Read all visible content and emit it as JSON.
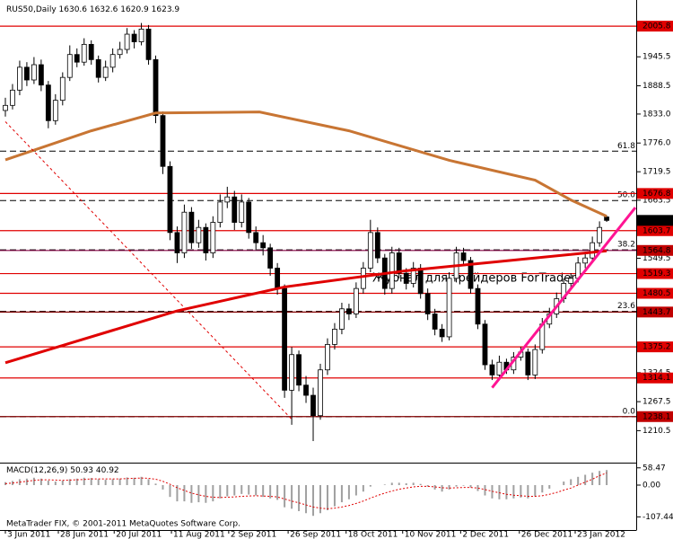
{
  "chart_data": {
    "type": "candlestick",
    "symbol": "RUS50,Daily",
    "watermark": "Журнал для трейдеров   ForTrader",
    "copyright": "MetaTrader FIX, © 2001-2011 MetaQuotes Software Corp.",
    "xlim": [
      -0.75,
      88.25
    ],
    "xticks": [
      {
        "value": 0,
        "label": "3 Jun 2011"
      },
      {
        "value": 7.4,
        "label": "28 Jun 2011"
      },
      {
        "value": 15.2,
        "label": "20 Jul 2011"
      },
      {
        "value": 23.2,
        "label": "11 Aug 2011"
      },
      {
        "value": 31.2,
        "label": "2 Sep 2011"
      },
      {
        "value": 39.5,
        "label": "26 Sep 2011"
      },
      {
        "value": 47.6,
        "label": "18 Oct 2011"
      },
      {
        "value": 55.5,
        "label": "10 Nov 2011"
      },
      {
        "value": 63.6,
        "label": "2 Dec 2011"
      },
      {
        "value": 71.8,
        "label": "26 Dec 2011"
      },
      {
        "value": 79.6,
        "label": "23 Jan 2012"
      }
    ],
    "ylim": [
      1147.6,
      2057.2
    ],
    "yticks": [
      1945.5,
      1888.5,
      {
        "value": 1833,
        "label": "1833.0"
      },
      {
        "value": 1776,
        "label": "1776.0"
      },
      1719.5,
      1663.5,
      1549.5,
      1324.5,
      1267.5,
      1210.5
    ],
    "up_color": "#ffffff",
    "down_color": "#000000",
    "candles": [
      [
        1840,
        1865,
        1828,
        1850
      ],
      [
        1850,
        1892,
        1842,
        1880
      ],
      [
        1880,
        1938,
        1870,
        1925
      ],
      [
        1925,
        1935,
        1888,
        1900
      ],
      [
        1900,
        1945,
        1892,
        1930
      ],
      [
        1930,
        1940,
        1878,
        1890
      ],
      [
        1890,
        1898,
        1805,
        1820
      ],
      [
        1820,
        1872,
        1812,
        1860
      ],
      [
        1860,
        1915,
        1850,
        1905
      ],
      [
        1905,
        1968,
        1898,
        1950
      ],
      [
        1950,
        1962,
        1925,
        1935
      ],
      [
        1935,
        1982,
        1928,
        1970
      ],
      [
        1970,
        1978,
        1930,
        1940
      ],
      [
        1940,
        1948,
        1895,
        1905
      ],
      [
        1905,
        1938,
        1898,
        1925
      ],
      [
        1925,
        1962,
        1915,
        1950
      ],
      [
        1950,
        1975,
        1942,
        1960
      ],
      [
        1960,
        2002,
        1952,
        1990
      ],
      [
        1990,
        1998,
        1962,
        1975
      ],
      [
        1975,
        2012,
        1968,
        2000
      ],
      [
        2000,
        2008,
        1930,
        1940
      ],
      [
        1940,
        1948,
        1815,
        1830
      ],
      [
        1830,
        1838,
        1715,
        1730
      ],
      [
        1730,
        1740,
        1585,
        1600
      ],
      [
        1600,
        1612,
        1540,
        1560
      ],
      [
        1560,
        1655,
        1550,
        1640
      ],
      [
        1640,
        1650,
        1568,
        1580
      ],
      [
        1580,
        1625,
        1570,
        1610
      ],
      [
        1610,
        1618,
        1545,
        1560
      ],
      [
        1560,
        1632,
        1550,
        1620
      ],
      [
        1620,
        1675,
        1610,
        1660
      ],
      [
        1660,
        1690,
        1648,
        1670
      ],
      [
        1670,
        1682,
        1605,
        1620
      ],
      [
        1620,
        1675,
        1610,
        1660
      ],
      [
        1660,
        1668,
        1588,
        1600
      ],
      [
        1600,
        1612,
        1565,
        1580
      ],
      [
        1580,
        1595,
        1555,
        1570
      ],
      [
        1570,
        1578,
        1515,
        1530
      ],
      [
        1530,
        1540,
        1478,
        1490
      ],
      [
        1490,
        1498,
        1275,
        1290
      ],
      [
        1290,
        1375,
        1222,
        1360
      ],
      [
        1360,
        1368,
        1288,
        1300
      ],
      [
        1300,
        1318,
        1265,
        1280
      ],
      [
        1280,
        1295,
        1190,
        1240
      ],
      [
        1240,
        1342,
        1232,
        1330
      ],
      [
        1330,
        1392,
        1320,
        1380
      ],
      [
        1380,
        1422,
        1370,
        1410
      ],
      [
        1410,
        1462,
        1400,
        1450
      ],
      [
        1450,
        1460,
        1428,
        1440
      ],
      [
        1440,
        1502,
        1432,
        1490
      ],
      [
        1490,
        1542,
        1480,
        1530
      ],
      [
        1530,
        1625,
        1522,
        1600
      ],
      [
        1600,
        1610,
        1540,
        1550
      ],
      [
        1550,
        1558,
        1478,
        1490
      ],
      [
        1490,
        1572,
        1480,
        1560
      ],
      [
        1560,
        1570,
        1510,
        1520
      ],
      [
        1520,
        1530,
        1488,
        1500
      ],
      [
        1500,
        1542,
        1492,
        1530
      ],
      [
        1530,
        1538,
        1470,
        1480
      ],
      [
        1480,
        1490,
        1428,
        1440
      ],
      [
        1440,
        1450,
        1398,
        1410
      ],
      [
        1410,
        1420,
        1385,
        1395
      ],
      [
        1395,
        1522,
        1388,
        1510
      ],
      [
        1510,
        1572,
        1502,
        1560
      ],
      [
        1560,
        1570,
        1535,
        1545
      ],
      [
        1545,
        1552,
        1480,
        1490
      ],
      [
        1490,
        1498,
        1410,
        1420
      ],
      [
        1420,
        1428,
        1330,
        1340
      ],
      [
        1340,
        1350,
        1310,
        1320
      ],
      [
        1320,
        1358,
        1312,
        1345
      ],
      [
        1345,
        1352,
        1322,
        1330
      ],
      [
        1330,
        1365,
        1322,
        1355
      ],
      [
        1355,
        1375,
        1348,
        1365
      ],
      [
        1365,
        1372,
        1310,
        1320
      ],
      [
        1320,
        1380,
        1312,
        1370
      ],
      [
        1370,
        1432,
        1362,
        1420
      ],
      [
        1420,
        1452,
        1412,
        1440
      ],
      [
        1440,
        1482,
        1432,
        1470
      ],
      [
        1470,
        1510,
        1462,
        1500
      ],
      [
        1500,
        1520,
        1490,
        1510
      ],
      [
        1510,
        1552,
        1502,
        1540
      ],
      [
        1540,
        1562,
        1530,
        1550
      ],
      [
        1550,
        1592,
        1542,
        1580
      ],
      [
        1580,
        1622,
        1572,
        1610
      ],
      [
        1630.6,
        1632.6,
        1620.9,
        1623.9
      ]
    ],
    "lines": [
      {
        "color": "#c87533",
        "style": "solid",
        "width": 3,
        "x": [
          0,
          12,
          21,
          35.5,
          48,
          62,
          74,
          79,
          84
        ],
        "values": [
          1743,
          1800,
          1835,
          1837,
          1800,
          1742,
          1703,
          1664,
          1632
        ]
      },
      {
        "color": "#e00000",
        "style": "solid",
        "width": 3,
        "x": [
          0,
          24,
          39,
          56,
          69,
          84
        ],
        "values": [
          1344,
          1446,
          1493,
          1525,
          1543,
          1564
        ]
      },
      {
        "color": "#e00000",
        "style": "dashed",
        "width": 1,
        "x": [
          0,
          40
        ],
        "values": [
          1818,
          1233
        ]
      },
      {
        "color": "#ff1493",
        "style": "solid",
        "width": 3,
        "x": [
          68,
          88
        ],
        "values": [
          1295,
          1649
        ]
      }
    ],
    "levels": [
      {
        "value": 2005.8,
        "color": "#e00000",
        "style": "solid"
      },
      {
        "value": 1676.8,
        "color": "#e00000",
        "style": "solid"
      },
      {
        "value": 1603.7,
        "color": "#e00000",
        "style": "solid"
      },
      {
        "value": 1564.8,
        "color": "#800040",
        "style": "solid"
      },
      {
        "value": 1519.3,
        "color": "#e00000",
        "style": "solid"
      },
      {
        "value": 1480.5,
        "color": "#e00000",
        "style": "solid"
      },
      {
        "value": 1443.7,
        "color": "#800000",
        "style": "solid"
      },
      {
        "value": 1375.2,
        "color": "#e00000",
        "style": "solid"
      },
      {
        "value": 1314.1,
        "color": "#e00000",
        "style": "solid"
      },
      {
        "value": 1238.1,
        "color": "#800000",
        "style": "solid"
      }
    ],
    "fibo_levels": [
      {
        "ratio": 61.8,
        "price": 1760
      },
      {
        "ratio": {
          "value": 50,
          "label": "50.0"
        },
        "price": 1663
      },
      {
        "ratio": 38.2,
        "price": 1566
      },
      {
        "ratio": 23.6,
        "price": 1445
      },
      {
        "ratio": {
          "value": 0,
          "label": "0.0"
        },
        "price": 1238
      }
    ],
    "indicator": {
      "name": "MACD(12,26,9)",
      "ylim": [
        -152,
        73
      ],
      "yticks": [
        58.47,
        {
          "value": 0,
          "label": "0.00"
        },
        -107.44
      ],
      "hist_color": "#a0a0a0",
      "signal_color": "#e00000",
      "macd": [
        10,
        14,
        20,
        22,
        25,
        22,
        15,
        12,
        15,
        20,
        22,
        25,
        24,
        20,
        18,
        20,
        22,
        26,
        25,
        28,
        20,
        5,
        -15,
        -40,
        -55,
        -55,
        -60,
        -58,
        -60,
        -55,
        -45,
        -38,
        -35,
        -30,
        -32,
        -35,
        -40,
        -45,
        -50,
        -75,
        -80,
        -88,
        -95,
        -104,
        -95,
        -85,
        -72,
        -58,
        -48,
        -35,
        -22,
        -5,
        0,
        2,
        8,
        8,
        6,
        8,
        4,
        -5,
        -15,
        -22,
        -15,
        -5,
        -2,
        -8,
        -20,
        -35,
        -45,
        -48,
        -48,
        -45,
        -42,
        -45,
        -38,
        -25,
        -12,
        0,
        12,
        20,
        28,
        35,
        42,
        48,
        50.93
      ],
      "signal": [
        5,
        7,
        10,
        13,
        16,
        18,
        18,
        17,
        16,
        17,
        18,
        19,
        21,
        21,
        21,
        21,
        21,
        22,
        23,
        24,
        23,
        20,
        13,
        3,
        -9,
        -18,
        -27,
        -33,
        -38,
        -41,
        -42,
        -41,
        -40,
        -38,
        -37,
        -36,
        -37,
        -38,
        -40,
        -47,
        -54,
        -60,
        -67,
        -74,
        -78,
        -80,
        -78,
        -74,
        -69,
        -62,
        -54,
        -44,
        -35,
        -27,
        -20,
        -14,
        -10,
        -6,
        -4,
        -4,
        -6,
        -9,
        -10,
        -9,
        -8,
        -8,
        -10,
        -15,
        -21,
        -26,
        -31,
        -34,
        -36,
        -38,
        -38,
        -36,
        -31,
        -25,
        -17,
        -10,
        0,
        10,
        20,
        32,
        40.92
      ]
    }
  }
}
